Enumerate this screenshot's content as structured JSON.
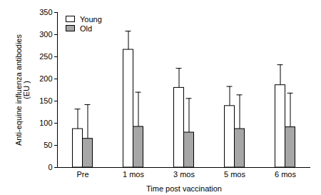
{
  "chart_data": {
    "type": "bar",
    "x_label": "Time post vaccination",
    "y_label": "Anti-equine influenza antibodies\n(EU )",
    "categories": [
      "Pre",
      "1 mos",
      "3 mos",
      "5 mos",
      "6 mos"
    ],
    "series": [
      {
        "name": "Young",
        "color": "#ffffff",
        "values": [
          87,
          266,
          180,
          139,
          186
        ],
        "errors": [
          45,
          42,
          44,
          44,
          46
        ]
      },
      {
        "name": "Old",
        "color": "#a6a6a6",
        "values": [
          65,
          92,
          79,
          87,
          91
        ],
        "errors": [
          77,
          78,
          77,
          77,
          77
        ]
      }
    ],
    "ylim": [
      0,
      350
    ],
    "yticks": [
      0,
      50,
      100,
      150,
      200,
      250,
      300,
      350
    ],
    "legend": "top-left"
  }
}
